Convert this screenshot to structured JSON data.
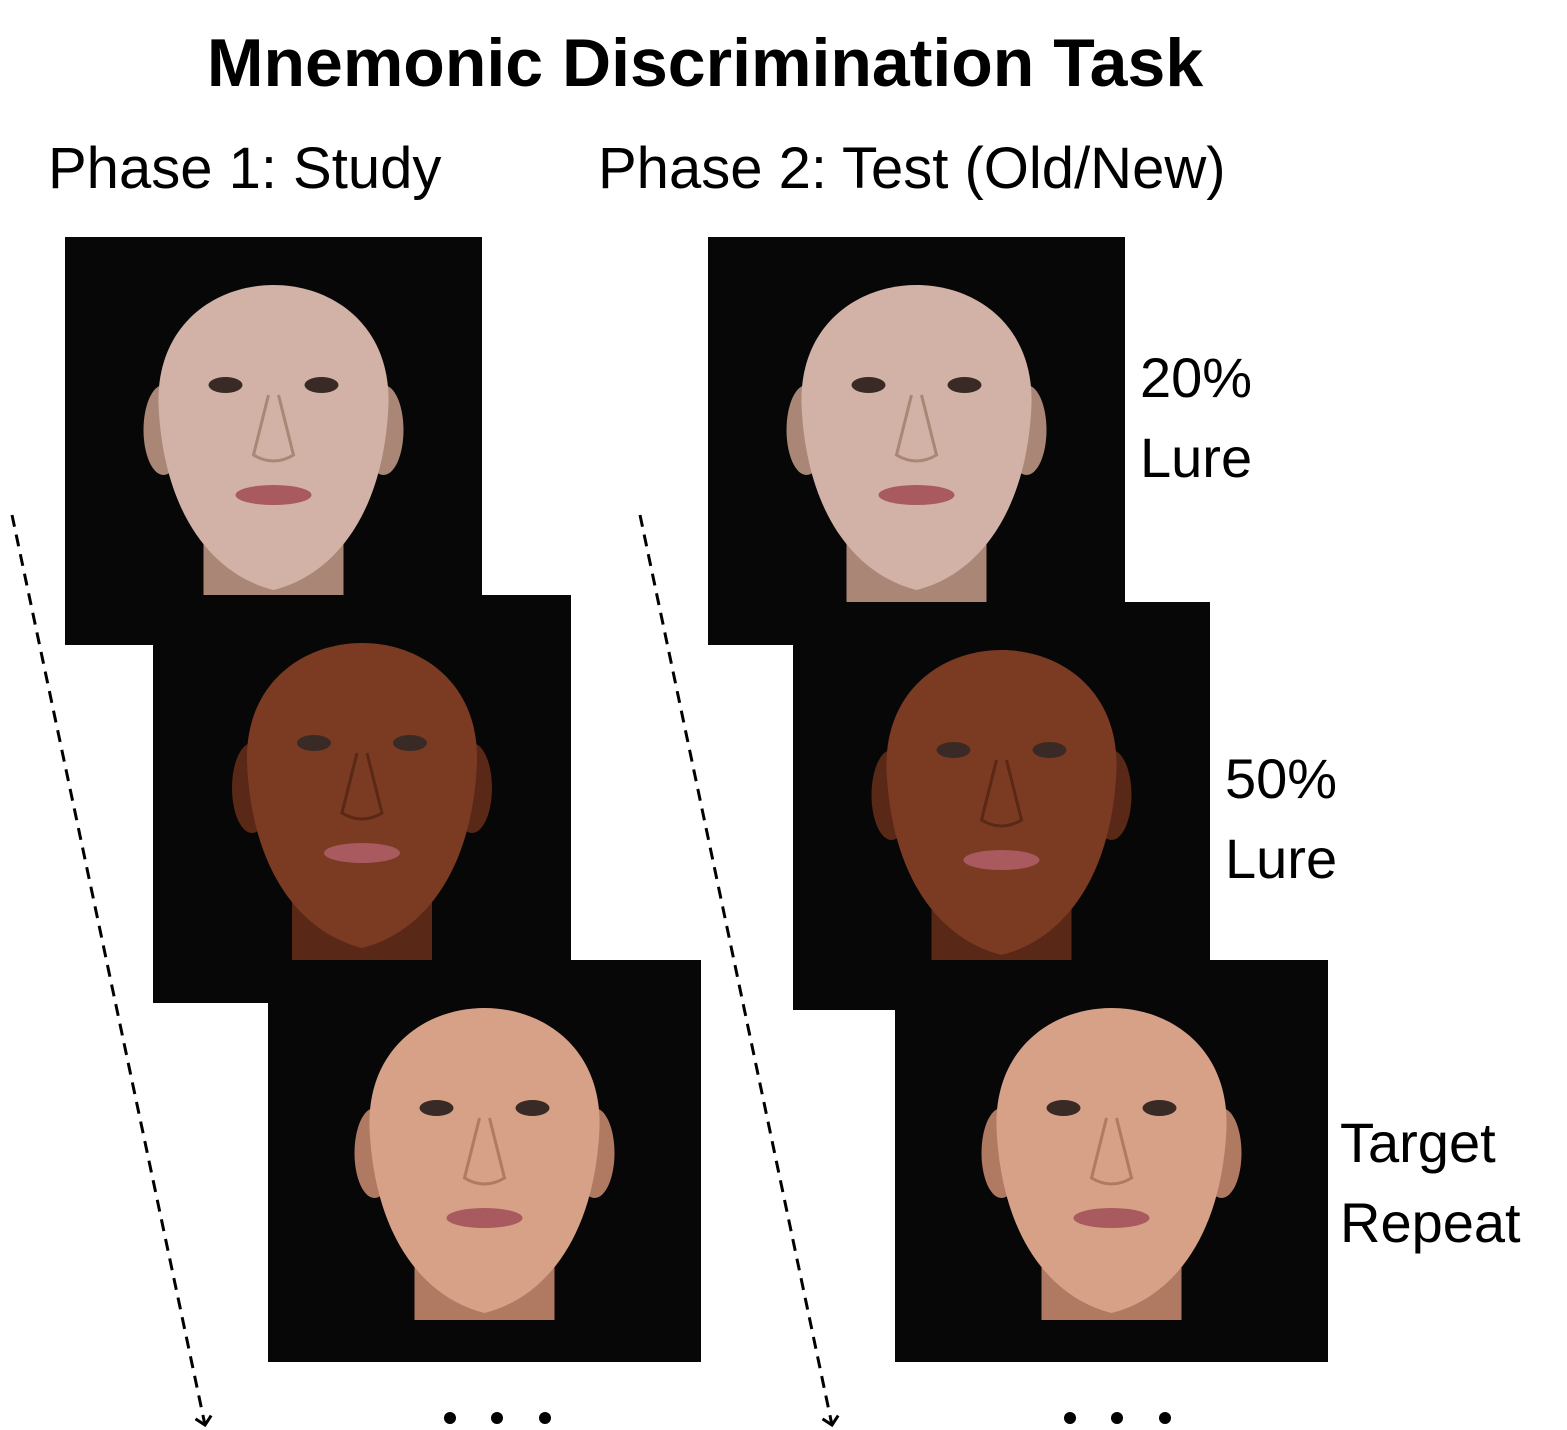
{
  "title": "Mnemonic Discrimination Task",
  "phases": [
    {
      "label": "Phase 1: Study"
    },
    {
      "label": "Phase 2: Test (Old/New)",
      "items": [
        {
          "lines": [
            "20%",
            "Lure"
          ]
        },
        {
          "lines": [
            "50%",
            "Lure"
          ]
        },
        {
          "lines": [
            "Target",
            "Repeat"
          ]
        }
      ]
    }
  ]
}
